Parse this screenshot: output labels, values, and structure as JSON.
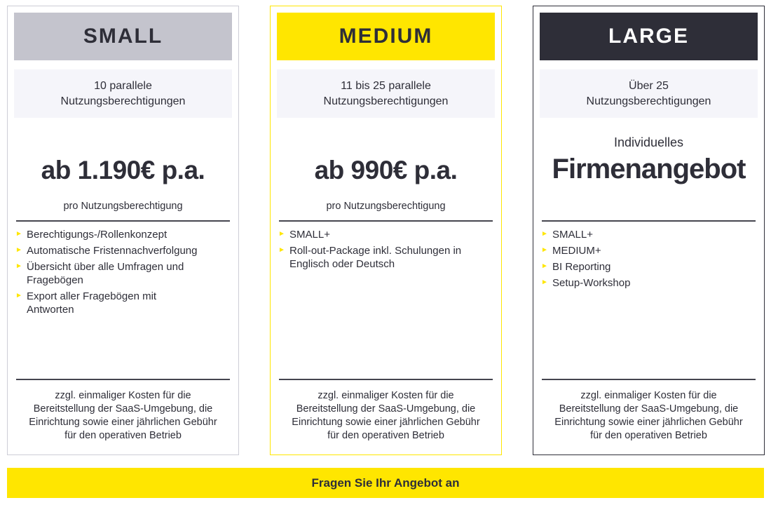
{
  "colors": {
    "accent_yellow": "#FFE600",
    "dark": "#2E2E38",
    "gray_header": "#C4C4CD",
    "light_band": "#F5F5FA",
    "divider": "#45454F",
    "white": "#FFFFFF"
  },
  "bullet_glyph": "►",
  "cards": [
    {
      "title": "SMALL",
      "capacity": "10 parallele\nNutzungsberechtigungen",
      "price": "ab 1.190€ p.a.",
      "price_note": "pro Nutzungsberechtigung",
      "features": [
        "Berechtigungs-/Rollenkonzept",
        "Automatische Fristennachverfolgung",
        "Übersicht über alle Umfragen und\nFragebögen",
        "Export aller Fragebögen mit\nAntworten"
      ],
      "footnote": "zzgl. einmaliger Kosten für die\nBereitstellung der SaaS-Umgebung, die\nEinrichtung sowie einer jährlichen Gebühr\nfür den operativen Betrieb"
    },
    {
      "title": "MEDIUM",
      "capacity": "11 bis 25 parallele\nNutzungsberechtigungen",
      "price": "ab 990€ p.a.",
      "price_note": "pro Nutzungsberechtigung",
      "features": [
        "SMALL+",
        "Roll-out-Package inkl. Schulungen in\nEnglisch oder Deutsch"
      ],
      "footnote": "zzgl. einmaliger Kosten für die\nBereitstellung der SaaS-Umgebung, die\nEinrichtung sowie einer jährlichen Gebühr\nfür den operativen Betrieb"
    },
    {
      "title": "LARGE",
      "capacity": "Über 25\nNutzungsberechtigungen",
      "offer_top": "Individuelles",
      "offer_main": "Firmenangebot",
      "features": [
        "SMALL+",
        "MEDIUM+",
        "BI Reporting",
        "Setup-Workshop"
      ],
      "footnote": "zzgl. einmaliger Kosten für die\nBereitstellung der SaaS-Umgebung, die\nEinrichtung sowie einer jährlichen Gebühr\nfür den operativen Betrieb"
    }
  ],
  "cta": {
    "label": "Fragen Sie Ihr Angebot an"
  }
}
